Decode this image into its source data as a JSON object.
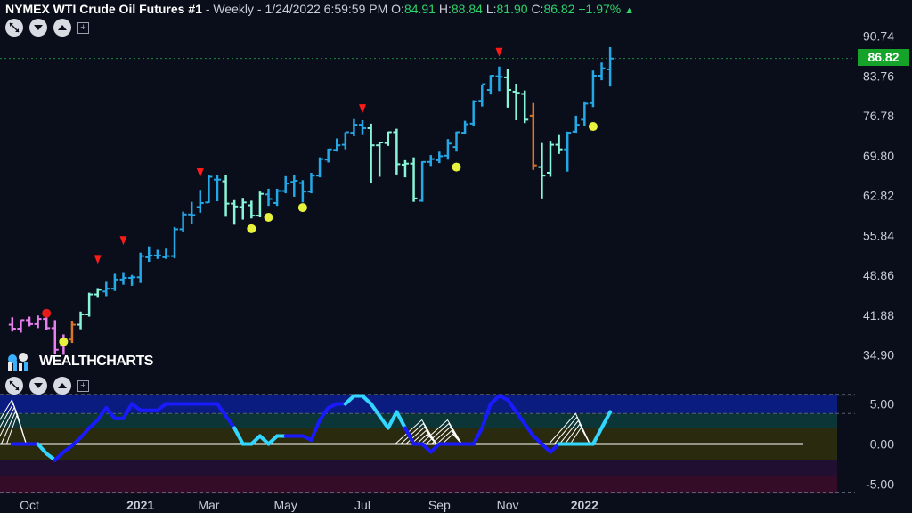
{
  "header": {
    "symbol": "NYMEX WTI Crude Oil Futures #1",
    "sep": " - ",
    "interval": "Weekly",
    "datetime": "1/24/2022 6:59:59 PM",
    "o_label": "O:",
    "o_value": "84.91",
    "h_label": "H:",
    "h_value": "88.84",
    "l_label": "L:",
    "l_value": "81.90",
    "c_label": "C:",
    "c_value": "86.82",
    "change": "+1.97%",
    "up_icon": "triangle-up-icon"
  },
  "logo": {
    "text": "WEALTHCHARTS"
  },
  "last_price": "86.82",
  "chart_data": [
    {
      "type": "ohlc",
      "x": [
        "2020-09-21",
        "2020-09-28",
        "2020-10-05",
        "2020-10-12",
        "2020-10-19",
        "2020-10-26",
        "2020-11-02",
        "2020-11-09",
        "2020-11-16",
        "2020-11-23",
        "2020-11-30",
        "2020-12-07",
        "2020-12-14",
        "2020-12-21",
        "2020-12-28",
        "2021-01-04",
        "2021-01-11",
        "2021-01-18",
        "2021-01-25",
        "2021-02-01",
        "2021-02-08",
        "2021-02-15",
        "2021-02-22",
        "2021-03-01",
        "2021-03-08",
        "2021-03-15",
        "2021-03-22",
        "2021-03-29",
        "2021-04-05",
        "2021-04-12",
        "2021-04-19",
        "2021-04-26",
        "2021-05-03",
        "2021-05-10",
        "2021-05-17",
        "2021-05-24",
        "2021-05-31",
        "2021-06-07",
        "2021-06-14",
        "2021-06-21",
        "2021-06-28",
        "2021-07-05",
        "2021-07-12",
        "2021-07-19",
        "2021-07-26",
        "2021-08-02",
        "2021-08-09",
        "2021-08-16",
        "2021-08-23",
        "2021-08-30",
        "2021-09-06",
        "2021-09-13",
        "2021-09-20",
        "2021-09-27",
        "2021-10-04",
        "2021-10-11",
        "2021-10-18",
        "2021-10-25",
        "2021-11-01",
        "2021-11-08",
        "2021-11-15",
        "2021-11-22",
        "2021-11-29",
        "2021-12-06",
        "2021-12-13",
        "2021-12-20",
        "2021-12-27",
        "2022-01-03",
        "2022-01-10",
        "2022-01-17",
        "2022-01-24"
      ],
      "open": [
        40.2,
        39.5,
        41.0,
        40.3,
        41.2,
        39.6,
        36.5,
        37.6,
        40.2,
        42.0,
        45.5,
        46.0,
        46.5,
        48.1,
        48.4,
        48.5,
        52.0,
        52.3,
        52.0,
        52.2,
        56.9,
        59.5,
        60.8,
        61.6,
        65.6,
        65.3,
        61.4,
        60.8,
        61.1,
        59.3,
        63.0,
        61.5,
        63.6,
        65.2,
        65.0,
        63.5,
        66.3,
        69.1,
        70.8,
        71.7,
        73.8,
        75.2,
        74.6,
        71.6,
        72.0,
        73.9,
        68.2,
        68.4,
        61.9,
        68.7,
        69.0,
        69.8,
        71.3,
        73.8,
        75.4,
        79.4,
        81.3,
        83.7,
        83.5,
        81.0,
        80.6,
        76.8,
        67.8,
        66.8,
        71.7,
        70.9,
        74.0,
        76.1,
        79.0,
        83.8,
        84.9
      ],
      "high": [
        41.5,
        41.0,
        41.6,
        41.8,
        41.9,
        41.0,
        38.5,
        40.9,
        42.5,
        45.8,
        46.6,
        47.7,
        49.1,
        49.4,
        48.9,
        52.8,
        53.9,
        53.3,
        53.5,
        57.3,
        60.0,
        61.7,
        63.8,
        66.4,
        66.4,
        66.4,
        62.0,
        62.4,
        61.9,
        63.5,
        64.0,
        64.0,
        66.2,
        66.4,
        65.5,
        66.8,
        69.5,
        71.0,
        72.8,
        73.9,
        76.2,
        76.0,
        75.4,
        72.2,
        74.0,
        74.5,
        69.0,
        69.5,
        68.8,
        69.9,
        70.5,
        72.7,
        74.0,
        75.9,
        79.5,
        82.2,
        83.9,
        85.4,
        84.9,
        82.4,
        81.2,
        79.0,
        72.0,
        72.4,
        73.4,
        74.0,
        76.8,
        79.3,
        84.7,
        86.1,
        88.8
      ],
      "low": [
        39.0,
        38.8,
        39.9,
        39.6,
        39.2,
        35.0,
        34.9,
        37.0,
        39.4,
        41.6,
        44.9,
        45.2,
        46.1,
        47.2,
        47.0,
        47.5,
        51.2,
        51.7,
        51.7,
        51.8,
        56.4,
        57.8,
        59.8,
        61.5,
        61.8,
        59.1,
        57.7,
        58.6,
        58.8,
        59.0,
        61.0,
        61.0,
        63.2,
        62.6,
        61.6,
        63.2,
        66.0,
        68.6,
        70.5,
        70.9,
        73.2,
        73.4,
        65.0,
        66.1,
        71.5,
        66.5,
        66.0,
        61.7,
        61.7,
        68.0,
        68.5,
        69.1,
        70.5,
        73.5,
        74.9,
        78.4,
        80.5,
        81.1,
        78.2,
        76.0,
        75.5,
        67.3,
        62.3,
        66.1,
        70.1,
        67.0,
        73.8,
        75.0,
        78.3,
        83.0,
        81.9
      ],
      "close": [
        39.5,
        41.0,
        40.3,
        41.2,
        39.6,
        35.8,
        37.6,
        40.2,
        42.0,
        45.5,
        46.3,
        46.5,
        48.1,
        48.4,
        48.5,
        52.2,
        52.3,
        52.3,
        52.2,
        56.9,
        59.5,
        59.4,
        61.5,
        66.1,
        65.6,
        61.4,
        60.9,
        61.6,
        59.3,
        63.1,
        62.2,
        63.6,
        64.9,
        65.4,
        63.5,
        66.3,
        69.2,
        70.9,
        71.6,
        73.9,
        75.2,
        74.6,
        71.6,
        72.1,
        73.9,
        68.3,
        68.4,
        62.3,
        68.7,
        69.2,
        69.7,
        71.9,
        73.9,
        75.3,
        79.3,
        82.3,
        83.8,
        83.6,
        81.3,
        80.8,
        76.1,
        68.1,
        66.3,
        71.7,
        70.9,
        73.8,
        75.2,
        78.9,
        83.8,
        85.1,
        86.8
      ],
      "colors": [
        "#e87ef0",
        "#e87ef0",
        "#e87ef0",
        "#e87ef0",
        "#e87ef0",
        "#e87ef0",
        "#e87ef0",
        "#d8742c",
        "#88f5d8",
        "#88f5d8",
        "#88f5d8",
        "#24a8e6",
        "#24a8e6",
        "#24a8e6",
        "#24a8e6",
        "#24a8e6",
        "#24a8e6",
        "#24a8e6",
        "#24a8e6",
        "#24a8e6",
        "#24a8e6",
        "#24a8e6",
        "#24a8e6",
        "#24a8e6",
        "#24a8e6",
        "#88f5d8",
        "#88f5d8",
        "#88f5d8",
        "#88f5d8",
        "#88f5d8",
        "#24a8e6",
        "#24a8e6",
        "#24a8e6",
        "#24a8e6",
        "#24a8e6",
        "#24a8e6",
        "#24a8e6",
        "#24a8e6",
        "#24a8e6",
        "#24a8e6",
        "#24a8e6",
        "#24a8e6",
        "#88f5d8",
        "#88f5d8",
        "#88f5d8",
        "#88f5d8",
        "#88f5d8",
        "#88f5d8",
        "#24a8e6",
        "#24a8e6",
        "#24a8e6",
        "#24a8e6",
        "#24a8e6",
        "#24a8e6",
        "#24a8e6",
        "#24a8e6",
        "#24a8e6",
        "#24a8e6",
        "#88f5d8",
        "#88f5d8",
        "#88f5d8",
        "#d8742c",
        "#88f5d8",
        "#88f5d8",
        "#88f5d8",
        "#24a8e6",
        "#24a8e6",
        "#24a8e6",
        "#24a8e6",
        "#24a8e6",
        "#24a8e6"
      ],
      "yticks": [
        34.9,
        41.88,
        48.86,
        55.84,
        62.82,
        69.8,
        76.78,
        83.76,
        90.74
      ],
      "xticks": [
        "Oct",
        "2021",
        "Mar",
        "May",
        "Jul",
        "Sep",
        "Nov",
        "2022"
      ],
      "xtick_dates": [
        "2020-10-05",
        "2021-01-04",
        "2021-03-01",
        "2021-05-03",
        "2021-07-05",
        "2021-09-06",
        "2021-11-01",
        "2022-01-03"
      ],
      "last_close_line": 86.82,
      "sell_markers": [
        {
          "x": "2020-11-30",
          "y": 51.6
        },
        {
          "x": "2020-12-21",
          "y": 54.9
        },
        {
          "x": "2021-02-22",
          "y": 66.8
        },
        {
          "x": "2021-07-05",
          "y": 78.0
        },
        {
          "x": "2021-10-25",
          "y": 87.9
        }
      ],
      "buy_markers": [
        {
          "x": "2020-11-02",
          "y": 37.2,
          "color": "#e6f23c"
        },
        {
          "x": "2021-04-05",
          "y": 57.0,
          "color": "#e6f23c"
        },
        {
          "x": "2021-04-19",
          "y": 59.0,
          "color": "#e6f23c"
        },
        {
          "x": "2021-05-17",
          "y": 60.7,
          "color": "#e6f23c"
        },
        {
          "x": "2021-09-20",
          "y": 67.8,
          "color": "#e6f23c"
        },
        {
          "x": "2022-01-10",
          "y": 74.9,
          "color": "#e6f23c"
        },
        {
          "x": "2020-10-19",
          "y": 42.2,
          "color": "#e81b1b"
        }
      ]
    },
    {
      "type": "line",
      "yticks": [
        5.0,
        0.0,
        -5.0
      ],
      "ytick_labels": [
        "5.00",
        "0.00",
        "-5.00"
      ],
      "ylim": [
        -6.2,
        6.2
      ],
      "bands": [
        {
          "from": 6.2,
          "to": 3.8,
          "color": "#0b1e8c"
        },
        {
          "from": 3.8,
          "to": 2.0,
          "color": "#0b3a3a"
        },
        {
          "from": 2.0,
          "to": 0.0,
          "color": "#2e2e0e"
        },
        {
          "from": 0.0,
          "to": -2.0,
          "color": "#2e2e0e"
        },
        {
          "from": -2.0,
          "to": -4.0,
          "color": "#231034"
        },
        {
          "from": -4.0,
          "to": -6.2,
          "color": "#3a0c2a"
        }
      ],
      "x": [
        "2020-09-21",
        "2020-09-28",
        "2020-10-05",
        "2020-10-12",
        "2020-10-19",
        "2020-10-26",
        "2020-11-02",
        "2020-11-09",
        "2020-11-16",
        "2020-11-23",
        "2020-11-30",
        "2020-12-07",
        "2020-12-14",
        "2020-12-21",
        "2020-12-28",
        "2021-01-04",
        "2021-01-11",
        "2021-01-18",
        "2021-01-25",
        "2021-02-01",
        "2021-02-08",
        "2021-02-15",
        "2021-02-22",
        "2021-03-01",
        "2021-03-08",
        "2021-03-15",
        "2021-03-22",
        "2021-03-29",
        "2021-04-05",
        "2021-04-12",
        "2021-04-19",
        "2021-04-26",
        "2021-05-03",
        "2021-05-10",
        "2021-05-17",
        "2021-05-24",
        "2021-05-31",
        "2021-06-07",
        "2021-06-14",
        "2021-06-21",
        "2021-06-28",
        "2021-07-05",
        "2021-07-12",
        "2021-07-19",
        "2021-07-26",
        "2021-08-02",
        "2021-08-09",
        "2021-08-16",
        "2021-08-23",
        "2021-08-30",
        "2021-09-06",
        "2021-09-13",
        "2021-09-20",
        "2021-09-27",
        "2021-10-04",
        "2021-10-11",
        "2021-10-18",
        "2021-10-25",
        "2021-11-01",
        "2021-11-08",
        "2021-11-15",
        "2021-11-22",
        "2021-11-29",
        "2021-12-06",
        "2021-12-13",
        "2021-12-20",
        "2021-12-27",
        "2022-01-03",
        "2022-01-10",
        "2022-01-17",
        "2022-01-24"
      ],
      "values": [
        0.0,
        0.0,
        0.0,
        0.0,
        -1.2,
        -2.0,
        -1.0,
        -0.2,
        0.8,
        2.0,
        3.0,
        4.5,
        3.2,
        3.2,
        5.0,
        4.2,
        4.2,
        4.2,
        5.0,
        5.0,
        5.0,
        5.0,
        5.0,
        5.0,
        5.0,
        3.5,
        2.0,
        0.0,
        0.0,
        1.0,
        0.0,
        1.0,
        1.0,
        1.0,
        1.0,
        0.5,
        3.0,
        4.5,
        5.0,
        5.0,
        6.0,
        6.0,
        5.0,
        3.5,
        2.0,
        4.0,
        2.0,
        0.0,
        0.0,
        -1.0,
        0.0,
        0.0,
        0.0,
        0.0,
        0.0,
        2.0,
        5.0,
        6.0,
        5.5,
        4.0,
        2.5,
        1.0,
        0.0,
        -1.0,
        0.0,
        0.0,
        0.0,
        0.0,
        0.0,
        2.0,
        4.0
      ],
      "line_colors": [
        "#1a1aff",
        "#1a1aff",
        "#1a1aff",
        "#1a1aff",
        "#33d6ff",
        "#33d6ff",
        "#1a1aff",
        "#1a1aff",
        "#1a1aff",
        "#1a1aff",
        "#1a1aff",
        "#1a1aff",
        "#1a1aff",
        "#1a1aff",
        "#1a1aff",
        "#1a1aff",
        "#1a1aff",
        "#1a1aff",
        "#1a1aff",
        "#1a1aff",
        "#1a1aff",
        "#1a1aff",
        "#1a1aff",
        "#1a1aff",
        "#1a1aff",
        "#1a1aff",
        "#1a1aff",
        "#33d6ff",
        "#33d6ff",
        "#33d6ff",
        "#33d6ff",
        "#33d6ff",
        "#33d6ff",
        "#1a1aff",
        "#1a1aff",
        "#1a1aff",
        "#1a1aff",
        "#1a1aff",
        "#1a1aff",
        "#1a1aff",
        "#33d6ff",
        "#33d6ff",
        "#33d6ff",
        "#33d6ff",
        "#33d6ff",
        "#33d6ff",
        "#33d6ff",
        "#1a1aff",
        "#1a1aff",
        "#1a1aff",
        "#1a1aff",
        "#1a1aff",
        "#1a1aff",
        "#1a1aff",
        "#1a1aff",
        "#1a1aff",
        "#1a1aff",
        "#1a1aff",
        "#1a1aff",
        "#1a1aff",
        "#1a1aff",
        "#1a1aff",
        "#1a1aff",
        "#1a1aff",
        "#1a1aff",
        "#33d6ff",
        "#33d6ff",
        "#33d6ff",
        "#33d6ff",
        "#33d6ff",
        "#33d6ff"
      ],
      "zero_line_color": "#ffffff",
      "wave_peaks": [
        {
          "x": "2020-09-28",
          "y": 5.5
        },
        {
          "x": "2021-08-30",
          "y": 3.0
        },
        {
          "x": "2021-09-20",
          "y": 3.0
        },
        {
          "x": "2022-01-03",
          "y": 3.8
        }
      ]
    }
  ]
}
